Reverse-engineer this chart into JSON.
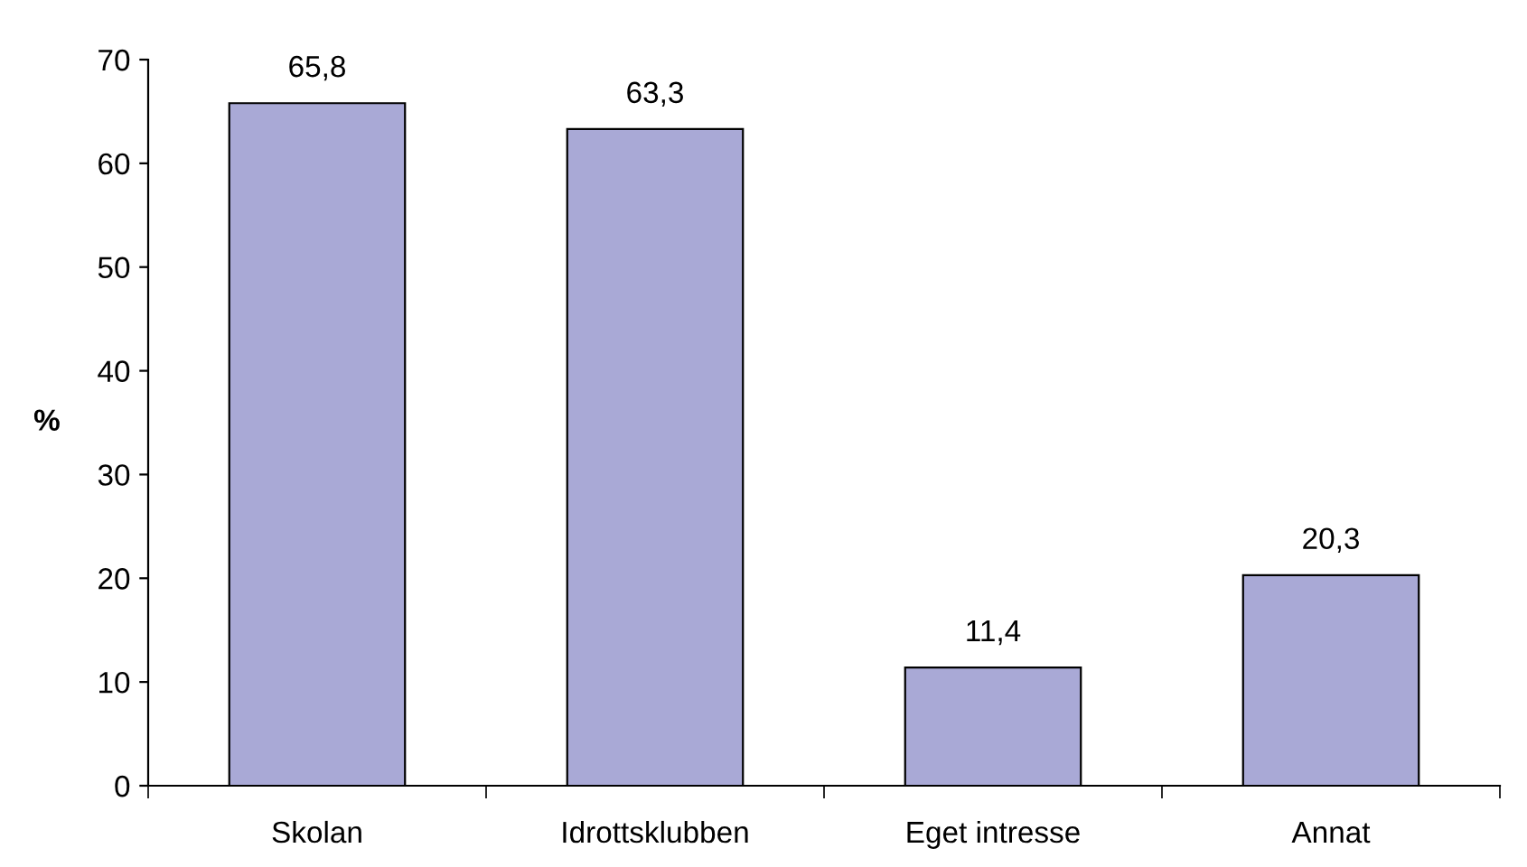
{
  "chart_data": {
    "type": "bar",
    "ylabel": "%",
    "categories": [
      "Skolan",
      "Idrottsklubben",
      "Eget intresse",
      "Annat"
    ],
    "values": [
      65.8,
      63.3,
      11.4,
      20.3
    ],
    "value_labels": [
      "65,8",
      "63,3",
      "11,4",
      "20,3"
    ],
    "color": "#a9a9d6",
    "ylim": [
      0,
      70
    ],
    "yticks": [
      0,
      10,
      20,
      30,
      40,
      50,
      60,
      70
    ],
    "grid": false,
    "legend": false
  }
}
